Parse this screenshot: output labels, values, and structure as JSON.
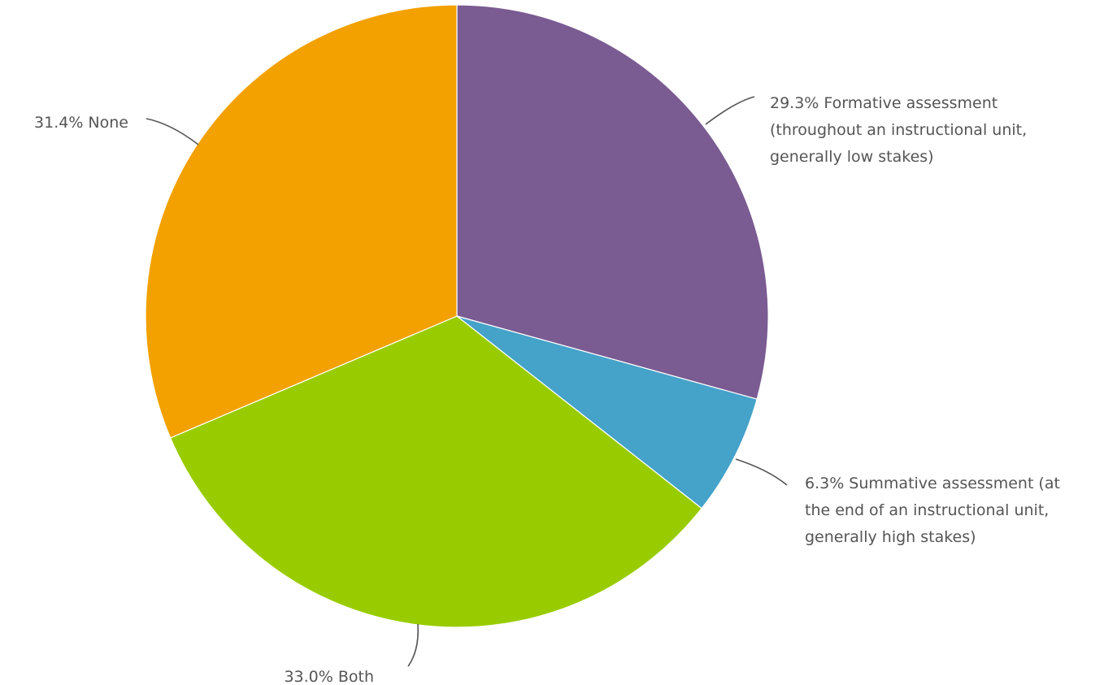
{
  "chart_data": {
    "type": "pie",
    "start_angle_deg": 0,
    "direction": "clockwise",
    "slices": [
      {
        "name": "Formative assessment (throughout an instructional unit, generally low stakes)",
        "value": 29.3,
        "color": "#7a5b92",
        "label_lines": [
          "29.3% Formative assessment",
          "(throughout an instructional unit,",
          "generally low stakes)"
        ]
      },
      {
        "name": "Summative assessment (at the end of an instructional unit, generally high stakes)",
        "value": 6.3,
        "color": "#45a2c9",
        "label_lines": [
          "6.3% Summative assessment (at",
          "the end of an instructional unit,",
          "generally high stakes)"
        ]
      },
      {
        "name": "Both",
        "value": 33.0,
        "color": "#99cc00",
        "label_lines": [
          "33.0% Both"
        ]
      },
      {
        "name": "None",
        "value": 31.4,
        "color": "#f2a100",
        "label_lines": [
          "31.4% None"
        ]
      }
    ]
  }
}
